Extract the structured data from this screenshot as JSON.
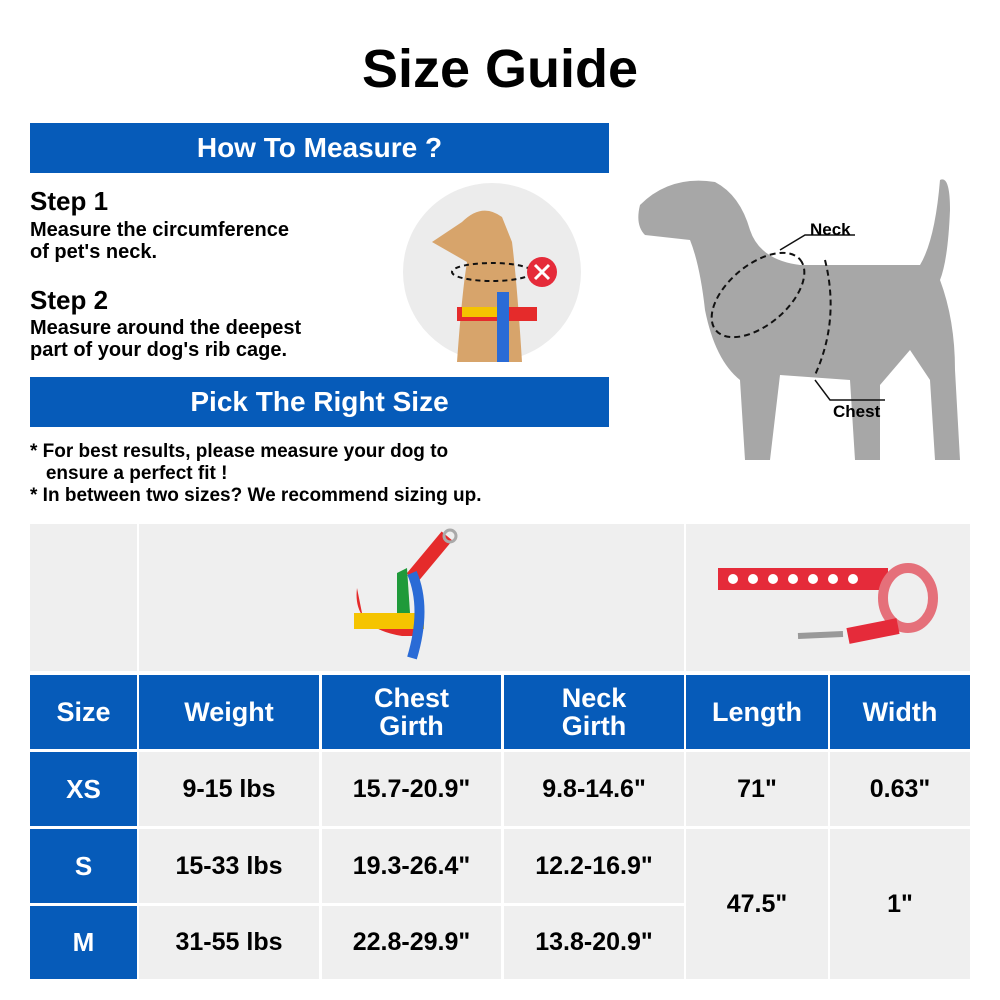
{
  "title": "Size Guide",
  "how_to_measure": "How To Measure ?",
  "steps": [
    {
      "label": "Step 1",
      "text_lines": [
        "Measure the circumference",
        "of pet's neck."
      ]
    },
    {
      "label": "Step 2",
      "text_lines": [
        "Measure around the deepest",
        "part of your dog's rib cage."
      ]
    }
  ],
  "diagram": {
    "neck_label": "Neck",
    "chest_label": "Chest"
  },
  "pick_size": "Pick The Right Size",
  "notes": [
    "* For best results, please measure your dog to",
    "   ensure a perfect fit !",
    "* In between two sizes? We recommend sizing up."
  ],
  "colors": {
    "accent": "#065bb9",
    "cell": "#efefef",
    "dog": "#a7a7a7"
  },
  "table": {
    "headers": [
      "Size",
      "Weight",
      "Chest Girth",
      "Neck Girth",
      "Length",
      "Width"
    ],
    "rows": [
      {
        "size": "XS",
        "weight": "9-15 lbs",
        "chest": "15.7-20.9\"",
        "neck": "9.8-14.6\""
      },
      {
        "size": "S",
        "weight": "15-33 lbs",
        "chest": "19.3-26.4\"",
        "neck": "12.2-16.9\""
      },
      {
        "size": "M",
        "weight": "31-55 lbs",
        "chest": "22.8-29.9\"",
        "neck": "13.8-20.9\""
      }
    ],
    "leash": [
      {
        "length": "71\"",
        "width": "0.63\""
      },
      {
        "length": "47.5\"",
        "width": "1\""
      }
    ]
  }
}
